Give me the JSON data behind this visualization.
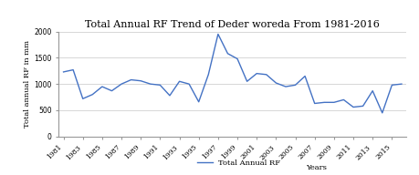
{
  "title": "Total Annual RF Trend of Deder woreda From 1981-2016",
  "xlabel": "Years",
  "ylabel": "Total annual RF in mm",
  "legend_label": "Total Annual RF",
  "years": [
    1981,
    1982,
    1983,
    1984,
    1985,
    1986,
    1987,
    1988,
    1989,
    1990,
    1991,
    1992,
    1993,
    1994,
    1995,
    1996,
    1997,
    1998,
    1999,
    2000,
    2001,
    2002,
    2003,
    2004,
    2005,
    2006,
    2007,
    2008,
    2009,
    2010,
    2011,
    2012,
    2013,
    2014,
    2015,
    2016
  ],
  "values": [
    1230,
    1270,
    720,
    800,
    950,
    870,
    1000,
    1080,
    1060,
    1000,
    980,
    780,
    1050,
    1000,
    660,
    1180,
    1950,
    1580,
    1480,
    1050,
    1200,
    1180,
    1020,
    950,
    980,
    1150,
    630,
    650,
    650,
    700,
    560,
    580,
    870,
    450,
    980,
    1000
  ],
  "xtick_years": [
    1981,
    1983,
    1985,
    1987,
    1989,
    1991,
    1993,
    1995,
    1997,
    1999,
    2001,
    2003,
    2005,
    2007,
    2009,
    2011,
    2013,
    2015
  ],
  "ylim": [
    0,
    2000
  ],
  "yticks": [
    0,
    500,
    1000,
    1500,
    2000
  ],
  "line_color": "#4472C4",
  "line_width": 1.0,
  "background_color": "#ffffff",
  "grid_color": "#c8c8c8",
  "title_fontsize": 8,
  "axis_label_fontsize": 6,
  "tick_fontsize": 5.5,
  "legend_fontsize": 6
}
